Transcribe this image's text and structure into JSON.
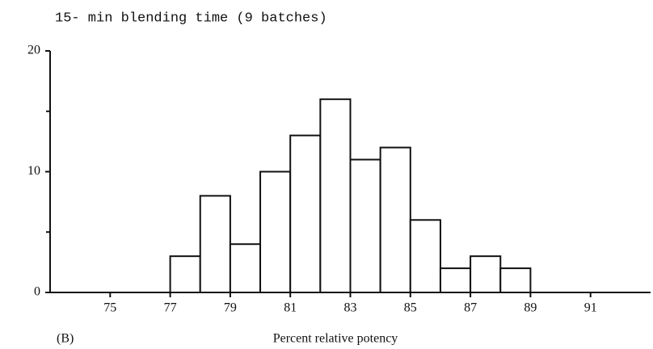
{
  "chart_data": {
    "type": "histogram",
    "title": "15- min  blending time (9 batches)",
    "panel_label": "(B)",
    "x_label": "Percent relative potency",
    "bins": [
      77,
      78,
      79,
      80,
      81,
      82,
      83,
      84,
      85,
      86,
      87,
      88,
      89
    ],
    "counts": [
      3,
      8,
      4,
      10,
      13,
      16,
      11,
      12,
      6,
      2,
      3,
      2
    ],
    "color": "#ffffff",
    "xlim": [
      73,
      93
    ],
    "xticks": [
      75,
      77,
      79,
      81,
      83,
      85,
      87,
      89,
      91
    ],
    "ylim": [
      0,
      20
    ],
    "yticks": [
      0,
      10,
      20
    ],
    "minor_yticks": [
      5,
      15
    ],
    "grid": false
  }
}
